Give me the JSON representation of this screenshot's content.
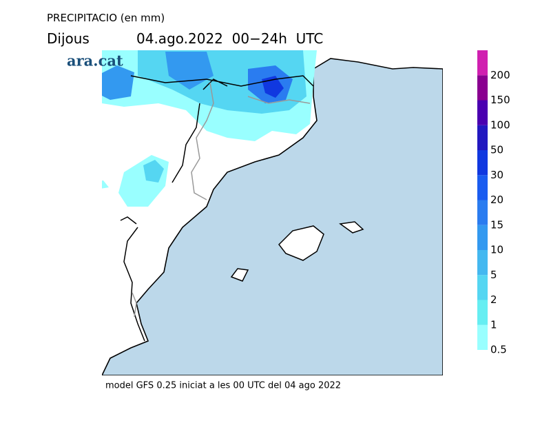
{
  "header": {
    "title": "PRECIPITACIO (en mm)",
    "day": "Dijous",
    "date": "04.ago.2022  00−24h  UTC"
  },
  "logo": "ara.cat",
  "legend": {
    "levels": [
      0.5,
      1,
      2,
      5,
      10,
      15,
      20,
      30,
      50,
      100,
      150,
      200
    ],
    "colors": [
      "#99ffff",
      "#66eef2",
      "#55d6f2",
      "#44b8f0",
      "#3399f0",
      "#2a7cf0",
      "#1a5cf0",
      "#1038e0",
      "#2218c0",
      "#4a00b0",
      "#8a0090",
      "#d020b0"
    ]
  },
  "footer": "model GFS 0.25 iniciat a les 00 UTC del 04 ago 2022"
}
